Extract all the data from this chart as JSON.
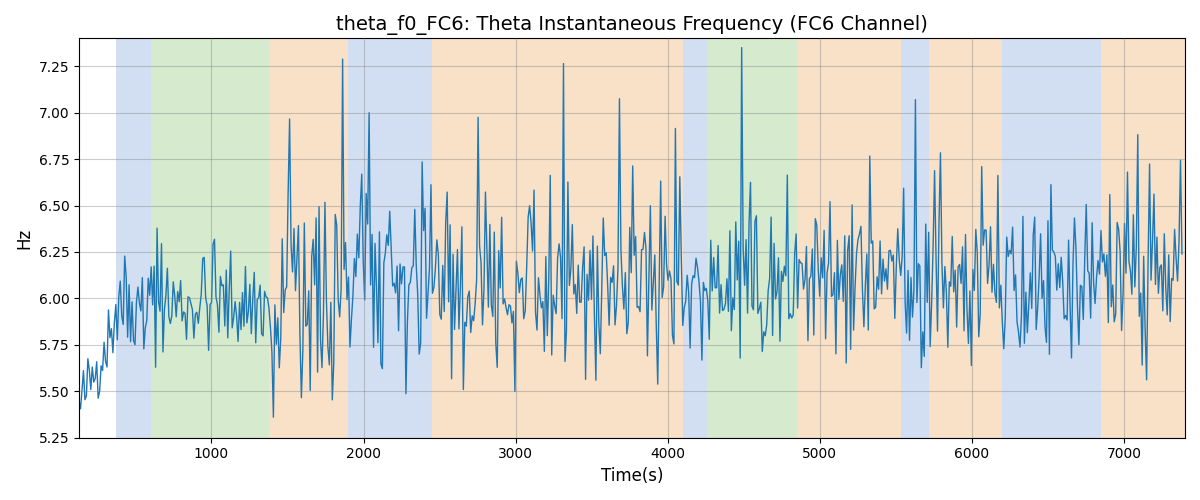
{
  "title": "theta_f0_FC6: Theta Instantaneous Frequency (FC6 Channel)",
  "xlabel": "Time(s)",
  "ylabel": "Hz",
  "xlim": [
    130,
    7400
  ],
  "ylim": [
    5.25,
    7.4
  ],
  "yticks": [
    5.25,
    5.5,
    5.75,
    6.0,
    6.25,
    6.5,
    6.75,
    7.0,
    7.25
  ],
  "xticks": [
    1000,
    2000,
    3000,
    4000,
    5000,
    6000,
    7000
  ],
  "line_color": "#1f77b4",
  "line_width": 1.0,
  "background_color": "#ffffff",
  "grid_color": "gray",
  "grid_alpha": 0.4,
  "grid_linewidth": 0.8,
  "colored_bands": [
    {
      "xmin": 370,
      "xmax": 600,
      "color": "#aec6e8",
      "alpha": 0.55
    },
    {
      "xmin": 600,
      "xmax": 1380,
      "color": "#b5d9a5",
      "alpha": 0.55
    },
    {
      "xmin": 1380,
      "xmax": 1900,
      "color": "#f5c99a",
      "alpha": 0.55
    },
    {
      "xmin": 1900,
      "xmax": 2450,
      "color": "#aec6e8",
      "alpha": 0.55
    },
    {
      "xmin": 2450,
      "xmax": 4100,
      "color": "#f5c99a",
      "alpha": 0.55
    },
    {
      "xmin": 4100,
      "xmax": 4260,
      "color": "#aec6e8",
      "alpha": 0.55
    },
    {
      "xmin": 4260,
      "xmax": 4850,
      "color": "#b5d9a5",
      "alpha": 0.55
    },
    {
      "xmin": 4850,
      "xmax": 5530,
      "color": "#f5c99a",
      "alpha": 0.55
    },
    {
      "xmin": 5530,
      "xmax": 5720,
      "color": "#aec6e8",
      "alpha": 0.55
    },
    {
      "xmin": 5720,
      "xmax": 6200,
      "color": "#f5c99a",
      "alpha": 0.55
    },
    {
      "xmin": 6200,
      "xmax": 6850,
      "color": "#aec6e8",
      "alpha": 0.55
    },
    {
      "xmin": 6850,
      "xmax": 7400,
      "color": "#f5c99a",
      "alpha": 0.55
    }
  ],
  "seed": 42,
  "t_start": 130,
  "t_end": 7380,
  "title_fontsize": 14,
  "figsize": [
    12.0,
    5.0
  ],
  "dpi": 100
}
